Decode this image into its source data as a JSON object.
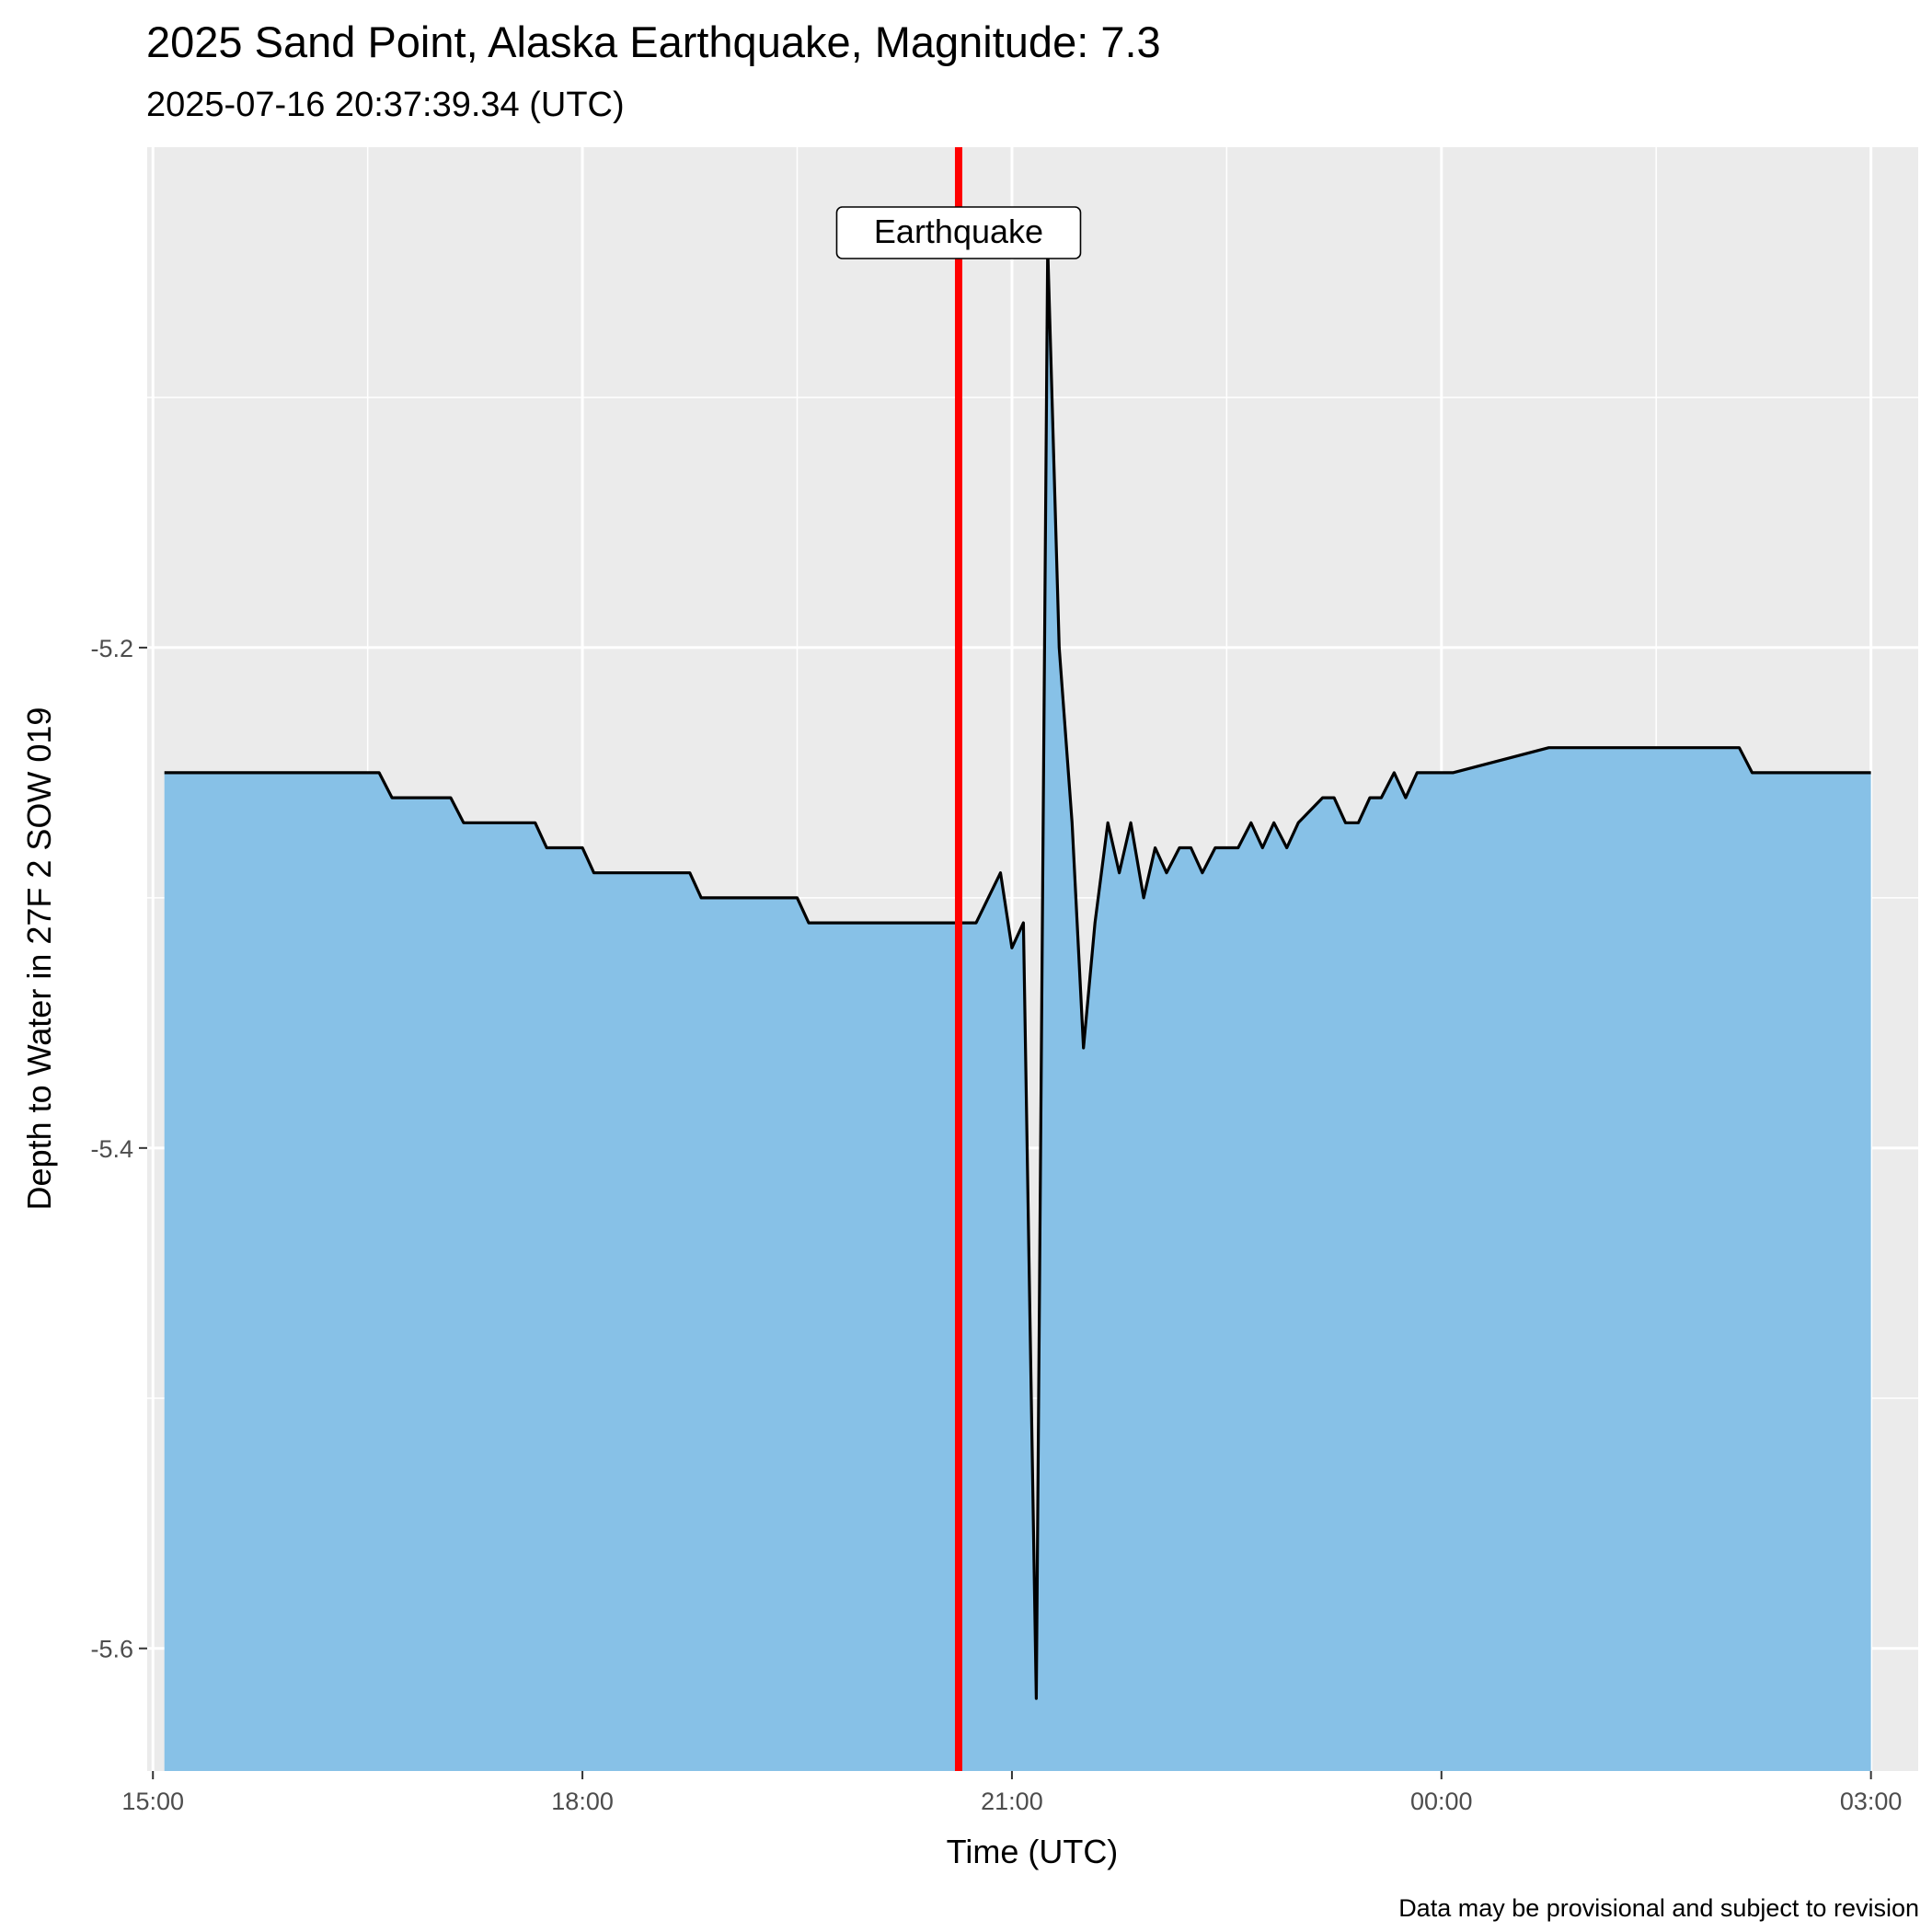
{
  "chart_data": {
    "type": "area",
    "title": "2025 Sand Point, Alaska Earthquake, Magnitude: 7.3",
    "subtitle": "2025-07-16 20:37:39.34 (UTC)",
    "xlabel": "Time (UTC)",
    "ylabel": "Depth to Water in 27F 2 SOW 019",
    "caption": "Data may be provisional and subject to revision",
    "x_unit": "hours since 2025-07-16 00:00 UTC",
    "xlim": [
      14.96,
      27.33
    ],
    "ylim": [
      -5.649,
      -5.0
    ],
    "x_ticks": [
      15,
      18,
      21,
      24,
      27
    ],
    "x_tick_labels": [
      "15:00",
      "18:00",
      "21:00",
      "00:00",
      "03:00"
    ],
    "y_ticks": [
      -5.2,
      -5.4,
      -5.6
    ],
    "y_tick_labels": [
      "-5.2",
      "-5.4",
      "-5.6"
    ],
    "grid": true,
    "fill_color": "#87c1e7",
    "line_color": "#000000",
    "event": {
      "label": "Earthquake",
      "x": 20.6276,
      "color": "#ff0000"
    },
    "series": [
      {
        "x": [
          15.08,
          16.58,
          16.67,
          17.08,
          17.17,
          17.67,
          17.75,
          18.0,
          18.08,
          18.75,
          18.83,
          19.5,
          19.58,
          20.75,
          20.92,
          21.0,
          21.08,
          21.17,
          21.25,
          21.33,
          21.42,
          21.5,
          21.58,
          21.67,
          21.75,
          21.83,
          21.92,
          22.0,
          22.08,
          22.17,
          22.25,
          22.33,
          22.42,
          22.5,
          22.58,
          22.67,
          22.75,
          22.83,
          22.92,
          23.0,
          23.17,
          23.25,
          23.33,
          23.42,
          23.5,
          23.58,
          23.67,
          23.75,
          23.83,
          23.92,
          24.0,
          24.08,
          24.75,
          24.83,
          26.08,
          26.17,
          27.0
        ],
        "y": [
          -5.25,
          -5.25,
          -5.26,
          -5.26,
          -5.27,
          -5.27,
          -5.28,
          -5.28,
          -5.29,
          -5.29,
          -5.3,
          -5.3,
          -5.31,
          -5.31,
          -5.29,
          -5.32,
          -5.31,
          -5.62,
          -5.04,
          -5.2,
          -5.27,
          -5.36,
          -5.31,
          -5.27,
          -5.29,
          -5.27,
          -5.3,
          -5.28,
          -5.29,
          -5.28,
          -5.28,
          -5.29,
          -5.28,
          -5.28,
          -5.28,
          -5.27,
          -5.28,
          -5.27,
          -5.28,
          -5.27,
          -5.26,
          -5.26,
          -5.27,
          -5.27,
          -5.26,
          -5.26,
          -5.25,
          -5.26,
          -5.25,
          -5.25,
          -5.25,
          -5.25,
          -5.24,
          -5.24,
          -5.24,
          -5.25,
          -5.25
        ]
      }
    ]
  }
}
